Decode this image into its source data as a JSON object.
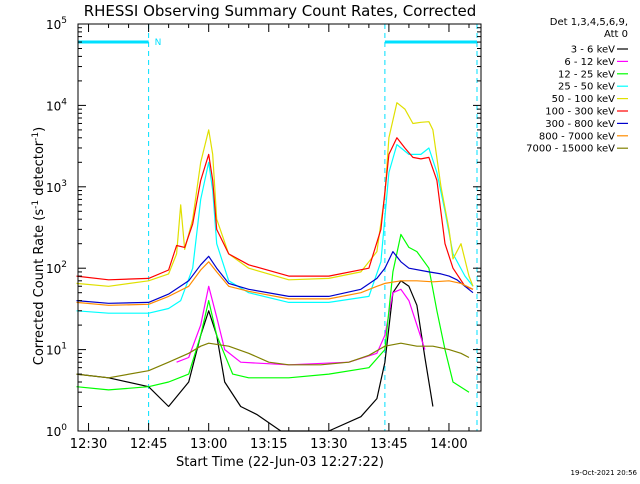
{
  "chart_data": {
    "type": "line",
    "title": "RHESSI Observing Summary Count Rates, Corrected",
    "xlabel": "Start Time (22-Jun-03 12:27:22)",
    "ylabel_parts": [
      "Corrected Count Rate (s",
      "-1",
      " detector",
      "-1",
      ")"
    ],
    "y_scale": "log",
    "ylim": [
      1,
      100000
    ],
    "xlim": [
      "12:27:22",
      "14:08:00"
    ],
    "x_ticks": [
      "12:30",
      "12:45",
      "13:00",
      "13:15",
      "13:30",
      "13:45",
      "14:00"
    ],
    "y_ticks": [
      {
        "base": "10",
        "exp": "0"
      },
      {
        "base": "10",
        "exp": "1"
      },
      {
        "base": "10",
        "exp": "2"
      },
      {
        "base": "10",
        "exp": "3"
      },
      {
        "base": "10",
        "exp": "4"
      },
      {
        "base": "10",
        "exp": "5"
      }
    ],
    "legend_header": [
      "Det 1,3,4,5,6,9,",
      "Att 0"
    ],
    "legend_position": "right",
    "annotations": {
      "night_label": "N",
      "timestamp": "19-Oct-2021 20:56",
      "night_bars": [
        [
          "12:27:22",
          "12:45"
        ],
        [
          "13:44",
          "14:07"
        ]
      ],
      "night_boundaries": [
        "12:45",
        "13:44",
        "14:07"
      ]
    },
    "series": [
      {
        "name": "3 - 6 keV",
        "color": "#000000",
        "points": [
          [
            "12:27",
            5
          ],
          [
            "12:35",
            4.5
          ],
          [
            "12:45",
            3.5
          ],
          [
            "12:50",
            2
          ],
          [
            "12:55",
            4
          ],
          [
            "12:58",
            15
          ],
          [
            "13:00",
            30
          ],
          [
            "13:02",
            15
          ],
          [
            "13:04",
            4
          ],
          [
            "13:08",
            2
          ],
          [
            "13:12",
            1.6
          ],
          [
            "13:18",
            1
          ],
          [
            "13:30",
            1
          ],
          [
            "13:38",
            1.5
          ],
          [
            "13:42",
            2.5
          ],
          [
            "13:44",
            7
          ],
          [
            "13:46",
            50
          ],
          [
            "13:48",
            70
          ],
          [
            "13:50",
            60
          ],
          [
            "13:52",
            35
          ],
          [
            "13:54",
            8
          ],
          [
            "13:56",
            2
          ]
        ]
      },
      {
        "name": "6 - 12 keV",
        "color": "#ff00ff",
        "points": [
          [
            "12:52",
            7
          ],
          [
            "12:55",
            8
          ],
          [
            "12:58",
            20
          ],
          [
            "13:00",
            60
          ],
          [
            "13:02",
            25
          ],
          [
            "13:04",
            10
          ],
          [
            "13:08",
            7
          ],
          [
            "13:20",
            6.5
          ],
          [
            "13:35",
            7
          ],
          [
            "13:42",
            9
          ],
          [
            "13:44",
            15
          ],
          [
            "13:46",
            50
          ],
          [
            "13:48",
            55
          ],
          [
            "13:50",
            40
          ],
          [
            "13:52",
            20
          ],
          [
            "13:54",
            10
          ]
        ]
      },
      {
        "name": "12 - 25 keV",
        "color": "#00ff00",
        "points": [
          [
            "12:27",
            3.5
          ],
          [
            "12:35",
            3.2
          ],
          [
            "12:45",
            3.5
          ],
          [
            "12:50",
            4
          ],
          [
            "12:55",
            5
          ],
          [
            "12:58",
            15
          ],
          [
            "13:00",
            40
          ],
          [
            "13:02",
            15
          ],
          [
            "13:06",
            5
          ],
          [
            "13:10",
            4.5
          ],
          [
            "13:20",
            4.5
          ],
          [
            "13:30",
            5
          ],
          [
            "13:40",
            6
          ],
          [
            "13:44",
            10
          ],
          [
            "13:46",
            90
          ],
          [
            "13:48",
            260
          ],
          [
            "13:50",
            180
          ],
          [
            "13:52",
            160
          ],
          [
            "13:55",
            100
          ],
          [
            "13:57",
            30
          ],
          [
            "13:59",
            10
          ],
          [
            "14:01",
            4
          ],
          [
            "14:05",
            3
          ]
        ]
      },
      {
        "name": "25 - 50 keV",
        "color": "#00ffff",
        "points": [
          [
            "12:27",
            30
          ],
          [
            "12:35",
            28
          ],
          [
            "12:45",
            28
          ],
          [
            "12:50",
            32
          ],
          [
            "12:53",
            40
          ],
          [
            "12:56",
            100
          ],
          [
            "12:58",
            700
          ],
          [
            "13:00",
            2000
          ],
          [
            "13:01",
            900
          ],
          [
            "13:02",
            200
          ],
          [
            "13:05",
            70
          ],
          [
            "13:10",
            50
          ],
          [
            "13:20",
            38
          ],
          [
            "13:30",
            38
          ],
          [
            "13:40",
            45
          ],
          [
            "13:43",
            120
          ],
          [
            "13:45",
            1500
          ],
          [
            "13:47",
            3300
          ],
          [
            "13:50",
            2500
          ],
          [
            "13:53",
            2500
          ],
          [
            "13:55",
            3000
          ],
          [
            "13:57",
            1500
          ],
          [
            "13:59",
            500
          ],
          [
            "14:01",
            150
          ],
          [
            "14:04",
            80
          ],
          [
            "14:06",
            60
          ]
        ]
      },
      {
        "name": "50 - 100 keV",
        "color": "#e0e000",
        "points": [
          [
            "12:27",
            65
          ],
          [
            "12:35",
            60
          ],
          [
            "12:45",
            70
          ],
          [
            "12:50",
            85
          ],
          [
            "12:52",
            150
          ],
          [
            "12:53",
            600
          ],
          [
            "12:54",
            170
          ],
          [
            "12:56",
            400
          ],
          [
            "12:58",
            2000
          ],
          [
            "13:00",
            5000
          ],
          [
            "13:01",
            2500
          ],
          [
            "13:02",
            400
          ],
          [
            "13:05",
            150
          ],
          [
            "13:10",
            100
          ],
          [
            "13:20",
            72
          ],
          [
            "13:30",
            75
          ],
          [
            "13:38",
            90
          ],
          [
            "13:42",
            160
          ],
          [
            "13:44",
            800
          ],
          [
            "13:45",
            4000
          ],
          [
            "13:47",
            10800
          ],
          [
            "13:49",
            9000
          ],
          [
            "13:51",
            6000
          ],
          [
            "13:53",
            6200
          ],
          [
            "13:55",
            6300
          ],
          [
            "13:56",
            5000
          ],
          [
            "13:58",
            1000
          ],
          [
            "14:00",
            300
          ],
          [
            "14:01",
            130
          ],
          [
            "14:03",
            200
          ],
          [
            "14:05",
            80
          ],
          [
            "14:06",
            60
          ]
        ]
      },
      {
        "name": "100 - 300 keV",
        "color": "#ff0000",
        "points": [
          [
            "12:27",
            80
          ],
          [
            "12:35",
            72
          ],
          [
            "12:45",
            75
          ],
          [
            "12:50",
            95
          ],
          [
            "12:52",
            190
          ],
          [
            "12:54",
            180
          ],
          [
            "12:56",
            350
          ],
          [
            "12:58",
            1200
          ],
          [
            "13:00",
            2500
          ],
          [
            "13:01",
            1200
          ],
          [
            "13:02",
            300
          ],
          [
            "13:05",
            150
          ],
          [
            "13:10",
            110
          ],
          [
            "13:20",
            80
          ],
          [
            "13:30",
            80
          ],
          [
            "13:40",
            100
          ],
          [
            "13:43",
            300
          ],
          [
            "13:45",
            2500
          ],
          [
            "13:47",
            4000
          ],
          [
            "13:49",
            3000
          ],
          [
            "13:51",
            2300
          ],
          [
            "13:53",
            2200
          ],
          [
            "13:55",
            2300
          ],
          [
            "13:57",
            1200
          ],
          [
            "13:59",
            200
          ],
          [
            "14:01",
            100
          ],
          [
            "14:04",
            60
          ],
          [
            "14:06",
            55
          ]
        ]
      },
      {
        "name": "300 - 800 keV",
        "color": "#0000cc",
        "points": [
          [
            "12:27",
            40
          ],
          [
            "12:35",
            37
          ],
          [
            "12:45",
            38
          ],
          [
            "12:50",
            48
          ],
          [
            "12:55",
            70
          ],
          [
            "12:58",
            110
          ],
          [
            "13:00",
            140
          ],
          [
            "13:02",
            100
          ],
          [
            "13:05",
            65
          ],
          [
            "13:10",
            55
          ],
          [
            "13:20",
            45
          ],
          [
            "13:30",
            45
          ],
          [
            "13:38",
            55
          ],
          [
            "13:42",
            75
          ],
          [
            "13:44",
            100
          ],
          [
            "13:46",
            160
          ],
          [
            "13:48",
            120
          ],
          [
            "13:50",
            100
          ],
          [
            "13:55",
            90
          ],
          [
            "13:58",
            85
          ],
          [
            "14:00",
            80
          ],
          [
            "14:02",
            72
          ],
          [
            "14:04",
            60
          ],
          [
            "14:06",
            50
          ]
        ]
      },
      {
        "name": "800 - 7000 keV",
        "color": "#ff8c00",
        "points": [
          [
            "12:27",
            38
          ],
          [
            "12:35",
            35
          ],
          [
            "12:45",
            36
          ],
          [
            "12:50",
            45
          ],
          [
            "12:55",
            60
          ],
          [
            "12:58",
            95
          ],
          [
            "13:00",
            120
          ],
          [
            "13:02",
            90
          ],
          [
            "13:05",
            60
          ],
          [
            "13:10",
            52
          ],
          [
            "13:20",
            42
          ],
          [
            "13:30",
            42
          ],
          [
            "13:38",
            50
          ],
          [
            "13:42",
            60
          ],
          [
            "13:44",
            65
          ],
          [
            "13:48",
            70
          ],
          [
            "13:52",
            70
          ],
          [
            "13:56",
            68
          ],
          [
            "14:00",
            70
          ],
          [
            "14:03",
            65
          ],
          [
            "14:06",
            55
          ]
        ]
      },
      {
        "name": "7000 - 15000 keV",
        "color": "#808000",
        "points": [
          [
            "12:27",
            5
          ],
          [
            "12:35",
            4.5
          ],
          [
            "12:45",
            5.5
          ],
          [
            "12:50",
            7
          ],
          [
            "12:55",
            9
          ],
          [
            "12:58",
            11
          ],
          [
            "13:00",
            12
          ],
          [
            "13:05",
            11
          ],
          [
            "13:10",
            9
          ],
          [
            "13:15",
            7
          ],
          [
            "13:20",
            6.5
          ],
          [
            "13:28",
            6.5
          ],
          [
            "13:35",
            7
          ],
          [
            "13:40",
            8.5
          ],
          [
            "13:44",
            11
          ],
          [
            "13:48",
            12
          ],
          [
            "13:52",
            11
          ],
          [
            "13:56",
            11
          ],
          [
            "14:00",
            10
          ],
          [
            "14:03",
            9
          ],
          [
            "14:05",
            8
          ]
        ]
      }
    ]
  }
}
